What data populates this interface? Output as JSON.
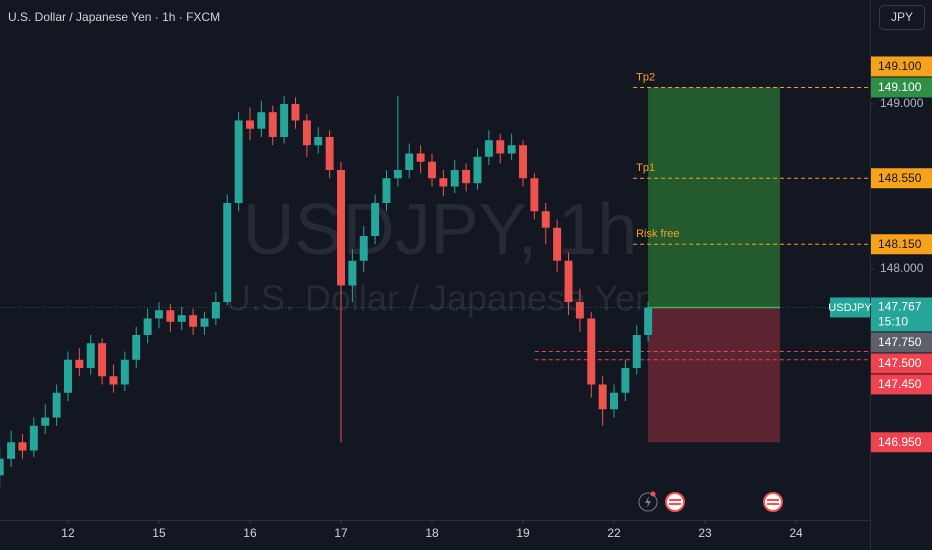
{
  "chart_data": {
    "type": "candlestick",
    "title": "U.S. Dollar / Japanese Yen · 1h · FXCM",
    "watermark": "USDJPY, 1h",
    "watermark_subtitle": "U.S. Dollar / Japanese Yen",
    "currency_button": "JPY",
    "up_color": "#26a69a",
    "down_color": "#ef5350",
    "xlim": [
      -0.747,
      8.813
    ],
    "ylim": [
      146.479,
      149.63
    ],
    "xticks": [
      {
        "value": 0,
        "label": "12"
      },
      {
        "value": 1,
        "label": "15"
      },
      {
        "value": 2,
        "label": "16"
      },
      {
        "value": 3,
        "label": "17"
      },
      {
        "value": 4,
        "label": "18"
      },
      {
        "value": 5,
        "label": "19"
      },
      {
        "value": 6,
        "label": "22"
      },
      {
        "value": 7,
        "label": "23"
      },
      {
        "value": 8,
        "label": "24"
      }
    ],
    "yticks": [
      {
        "value": 149,
        "label": "149.000"
      },
      {
        "value": 148,
        "label": "148.000"
      }
    ],
    "x": [
      -0.75,
      -0.625,
      -0.5,
      -0.375,
      -0.25,
      -0.125,
      0,
      0.125,
      0.25,
      0.375,
      0.5,
      0.625,
      0.75,
      0.875,
      1,
      1.125,
      1.25,
      1.375,
      1.5,
      1.625,
      1.75,
      1.875,
      2,
      2.125,
      2.25,
      2.375,
      2.5,
      2.625,
      2.75,
      2.875,
      3,
      3.125,
      3.25,
      3.375,
      3.5,
      3.625,
      3.75,
      3.875,
      4,
      4.125,
      4.25,
      4.375,
      4.5,
      4.625,
      4.75,
      4.875,
      5,
      5.125,
      5.25,
      5.375,
      5.5,
      5.625,
      5.75,
      5.875,
      6,
      6.125,
      6.25,
      6.375
    ],
    "open": [
      146.75,
      146.85,
      146.95,
      146.9,
      147.05,
      147.1,
      147.25,
      147.45,
      147.4,
      147.55,
      147.35,
      147.3,
      147.45,
      147.6,
      147.7,
      147.75,
      147.68,
      147.72,
      147.65,
      147.7,
      147.8,
      148.4,
      148.9,
      148.85,
      148.95,
      148.8,
      149.0,
      148.9,
      148.75,
      148.8,
      148.6,
      147.9,
      148.05,
      148.2,
      148.4,
      148.55,
      148.6,
      148.7,
      148.65,
      148.55,
      148.5,
      148.6,
      148.52,
      148.68,
      148.78,
      148.7,
      148.75,
      148.55,
      148.35,
      148.25,
      148.05,
      147.8,
      147.7,
      147.3,
      147.15,
      147.25,
      147.4,
      147.6
    ],
    "high": [
      146.92,
      147.02,
      147.0,
      147.1,
      147.18,
      147.3,
      147.5,
      147.52,
      147.6,
      147.58,
      147.42,
      147.5,
      147.65,
      147.76,
      147.8,
      147.79,
      147.77,
      147.76,
      147.74,
      147.86,
      148.45,
      148.95,
      148.98,
      149.02,
      148.99,
      149.05,
      149.04,
      148.94,
      148.86,
      148.84,
      148.65,
      148.12,
      148.26,
      148.45,
      148.6,
      149.05,
      148.76,
      148.75,
      148.7,
      148.6,
      148.66,
      148.64,
      148.73,
      148.84,
      148.82,
      148.82,
      148.78,
      148.58,
      148.4,
      148.3,
      148.1,
      147.88,
      147.74,
      147.35,
      147.3,
      147.45,
      147.66,
      147.8
    ],
    "low": [
      146.68,
      146.8,
      146.85,
      146.86,
      147.0,
      147.05,
      147.2,
      147.35,
      147.36,
      147.3,
      147.25,
      147.26,
      147.4,
      147.55,
      147.64,
      147.62,
      147.63,
      147.6,
      147.6,
      147.66,
      147.78,
      148.35,
      148.78,
      148.8,
      148.75,
      148.76,
      148.85,
      148.68,
      148.7,
      148.55,
      146.95,
      147.8,
      147.98,
      148.15,
      148.35,
      148.5,
      148.55,
      148.58,
      148.5,
      148.44,
      148.46,
      148.47,
      148.48,
      148.63,
      148.64,
      148.66,
      148.5,
      148.3,
      148.15,
      147.98,
      147.72,
      147.62,
      147.22,
      147.05,
      147.1,
      147.2,
      147.36,
      147.56
    ],
    "close": [
      146.85,
      146.95,
      146.9,
      147.05,
      147.1,
      147.25,
      147.45,
      147.4,
      147.55,
      147.35,
      147.3,
      147.45,
      147.6,
      147.7,
      147.75,
      147.68,
      147.72,
      147.65,
      147.7,
      147.8,
      148.4,
      148.9,
      148.85,
      148.95,
      148.8,
      149.0,
      148.9,
      148.75,
      148.8,
      148.6,
      147.9,
      148.05,
      148.2,
      148.4,
      148.55,
      148.6,
      148.7,
      148.65,
      148.55,
      148.5,
      148.6,
      148.52,
      148.68,
      148.78,
      148.7,
      148.75,
      148.55,
      148.35,
      148.25,
      148.05,
      147.8,
      147.7,
      147.3,
      147.15,
      147.25,
      147.4,
      147.6,
      147.767
    ],
    "position": {
      "x_start": 6.374,
      "x_end": 7.824,
      "entry": 147.767,
      "target": {
        "value": 149.1,
        "label": "149.100",
        "color": "#2f8f46"
      },
      "stop": {
        "value": 146.95,
        "label": "146.950",
        "color": "#ef4350"
      },
      "profit_color": "#235b2e",
      "loss_color": "#5c2330"
    },
    "levels": [
      {
        "name": "Tp2",
        "value": 149.1,
        "label": "149.100",
        "x_start": 6.21,
        "color": "#f7a21b"
      },
      {
        "name": "Tp1",
        "value": 148.55,
        "label": "148.550",
        "x_start": 6.21,
        "color": "#f7a21b"
      },
      {
        "name": "Risk free",
        "value": 148.15,
        "label": "148.150",
        "x_start": 6.21,
        "color": "#f7a21b"
      }
    ],
    "alerts": [
      {
        "value": 147.5,
        "label": "147.500",
        "x_start": 5.13,
        "color": "#ef4350"
      },
      {
        "value": 147.45,
        "label": "147.450",
        "x_start": 5.13,
        "color": "#ef4350"
      }
    ],
    "marker": {
      "value": 147.75,
      "label": "147.750",
      "color": "#5d606b"
    },
    "last_price": {
      "value": 147.767,
      "symbol": "USDJPY",
      "countdown": "15:10",
      "color": "#26a69a"
    }
  }
}
